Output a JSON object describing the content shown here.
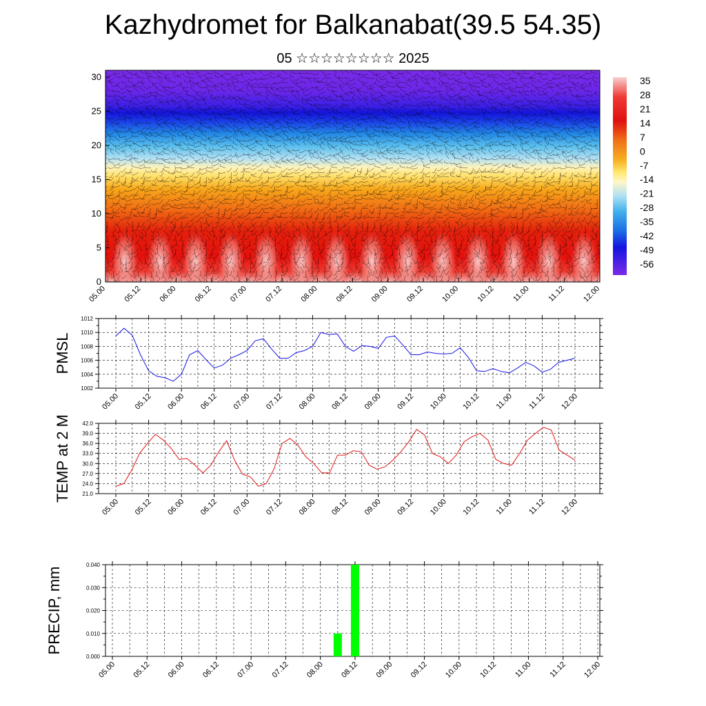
{
  "title": "Kazhydromet for Balkanabat(39.5 54.35)",
  "subtitle": "05 ☆☆☆☆☆☆☆☆ 2025",
  "time_labels": [
    "05.00",
    "05.12",
    "06.00",
    "06.12",
    "07.00",
    "07.12",
    "08.00",
    "08.12",
    "09.00",
    "09.12",
    "10.00",
    "10.12",
    "11.00",
    "11.12",
    "12.00"
  ],
  "chart_data": [
    {
      "type": "heatmap",
      "name": "temperature-wind-cross-section",
      "x_categories": [
        "05.00",
        "05.12",
        "06.00",
        "06.12",
        "07.00",
        "07.12",
        "08.00",
        "08.12",
        "09.00",
        "09.12",
        "10.00",
        "10.12",
        "11.00",
        "11.12",
        "12.00"
      ],
      "ylim": [
        0,
        31
      ],
      "yticks": [
        0,
        5,
        10,
        15,
        20,
        25,
        30
      ],
      "colorbar_labels": [
        "35",
        "28",
        "21",
        "14",
        "7",
        "0",
        "-7",
        "-14",
        "-21",
        "-28",
        "-35",
        "-42",
        "-49",
        "-56"
      ],
      "colors": {
        "warm_max": "#f8c6c6",
        "warm": "#e8140c",
        "orange": "#f59a17",
        "yellow": "#ffe870",
        "light_blue": "#a8dcf0",
        "blue": "#1f8fe8",
        "deep_blue": "#1820e8",
        "violet": "#7a28e8"
      }
    },
    {
      "type": "line",
      "ylabel": "PMSL",
      "ylim": [
        1002,
        1012
      ],
      "yticks": [
        "1002",
        "1004",
        "1006",
        "1008",
        "1010",
        "1012"
      ],
      "color": "#1414e6",
      "values": [
        1009.5,
        1010.6,
        1009.6,
        1006.8,
        1004.5,
        1003.7,
        1003.5,
        1003.0,
        1004.0,
        1006.8,
        1007.4,
        1006.1,
        1004.9,
        1005.3,
        1006.3,
        1006.8,
        1007.4,
        1008.8,
        1009.1,
        1007.6,
        1006.3,
        1006.3,
        1007.1,
        1007.4,
        1008.0,
        1010.0,
        1009.7,
        1009.8,
        1008.0,
        1007.3,
        1008.1,
        1008.0,
        1007.7,
        1009.3,
        1009.5,
        1008.2,
        1006.8,
        1006.8,
        1007.2,
        1007.0,
        1006.9,
        1007.0,
        1007.8,
        1006.4,
        1004.5,
        1004.4,
        1004.8,
        1004.4,
        1004.2,
        1004.9,
        1005.7,
        1005.2,
        1004.3,
        1004.7,
        1005.7,
        1006.0,
        1006.3
      ]
    },
    {
      "type": "line",
      "ylabel": "TEMP at 2 M",
      "ylim": [
        21,
        42
      ],
      "yticks": [
        "21.0",
        "24.0",
        "27.0",
        "30.0",
        "33.0",
        "36.0",
        "39.0",
        "42.0"
      ],
      "color": "#e01414",
      "values": [
        23.2,
        24.0,
        28.0,
        33.0,
        36.0,
        38.7,
        37.0,
        34.5,
        31.2,
        31.5,
        29.5,
        27.2,
        29.5,
        33.5,
        36.8,
        31.0,
        26.8,
        26.0,
        23.2,
        24.0,
        28.5,
        36.0,
        37.5,
        35.5,
        32.0,
        30.0,
        27.2,
        27.2,
        32.5,
        32.5,
        33.8,
        33.5,
        29.5,
        28.3,
        29.0,
        31.0,
        33.5,
        36.5,
        40.2,
        38.5,
        33.0,
        32.0,
        30.0,
        32.5,
        36.5,
        38.0,
        39.0,
        37.0,
        31.2,
        30.0,
        29.5,
        33.0,
        37.0,
        39.0,
        40.8,
        40.0,
        34.0,
        32.5,
        31.0
      ]
    },
    {
      "type": "bar",
      "ylabel": "PRECIP, mm",
      "ylim": [
        0,
        0.04
      ],
      "yticks": [
        "0.000",
        "0.010",
        "0.020",
        "0.030",
        "0.040"
      ],
      "color": "#00ff00",
      "x": [
        "08.06",
        "08.12"
      ],
      "values": [
        0.01,
        0.04
      ]
    }
  ]
}
